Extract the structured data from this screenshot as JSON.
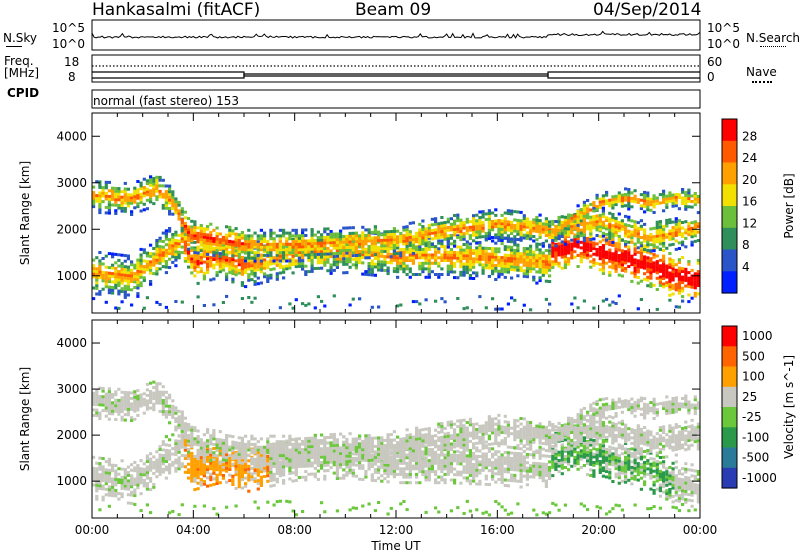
{
  "header": {
    "station": "Hankasalmi (fitACF)",
    "beam": "Beam 09",
    "date": "04/Sep/2014"
  },
  "noise_panel": {
    "left_label": "N.Sky",
    "right_label": "N.Search",
    "left_ticks": [
      "10^5",
      "10^0"
    ],
    "right_ticks": [
      "10^5",
      "10^0"
    ]
  },
  "freq_panel": {
    "left_label_1": "Freq.",
    "left_label_2": "[MHz]",
    "right_label": "Nave",
    "left_ticks": [
      "18",
      "8"
    ],
    "right_ticks": [
      "60",
      "0"
    ]
  },
  "cpid": {
    "label": "CPID",
    "text": "normal (fast stereo) 153"
  },
  "chart_data": [
    {
      "type": "heatmap",
      "title": "Power",
      "ylabel": "Slant Range [km]",
      "ylim": [
        200,
        4500
      ],
      "y_ticks": [
        "4000",
        "3000",
        "2000",
        "1000"
      ],
      "colorbar_label": "Power [dB]",
      "colorbar_ticks": [
        "28",
        "24",
        "20",
        "16",
        "12",
        "8",
        "4"
      ],
      "colors": [
        "#0020ff",
        "#2a55c8",
        "#2f8f5a",
        "#6bbf3a",
        "#f2e000",
        "#ffa000",
        "#ff5a00",
        "#ff0000"
      ],
      "bands": [
        {
          "name": "main",
          "points": [
            [
              0.0,
              1100
            ],
            [
              1.5,
              1000
            ],
            [
              2.5,
              1400
            ],
            [
              3.5,
              1800
            ],
            [
              4.0,
              1300
            ],
            [
              5.0,
              1450
            ],
            [
              6.0,
              1250
            ],
            [
              8.0,
              1500
            ],
            [
              10.0,
              1550
            ],
            [
              12.0,
              1450
            ],
            [
              14.0,
              1450
            ],
            [
              16.0,
              1400
            ],
            [
              18.0,
              1300
            ],
            [
              18.1,
              1600
            ],
            [
              19.0,
              1700
            ],
            [
              20.0,
              1550
            ],
            [
              21.0,
              1400
            ],
            [
              22.0,
              1250
            ],
            [
              23.0,
              1000
            ],
            [
              24.0,
              900
            ]
          ],
          "width": 450
        },
        {
          "name": "upper",
          "points": [
            [
              0.0,
              2750
            ],
            [
              1.5,
              2700
            ],
            [
              2.5,
              2900
            ],
            [
              3.2,
              2550
            ],
            [
              3.8,
              1900
            ],
            [
              5.0,
              1800
            ],
            [
              6.0,
              1700
            ],
            [
              8.0,
              1700
            ],
            [
              10.0,
              1750
            ],
            [
              12.0,
              1800
            ],
            [
              14.0,
              2000
            ],
            [
              16.0,
              2150
            ],
            [
              18.0,
              2000
            ],
            [
              19.0,
              2100
            ],
            [
              20.0,
              2200
            ],
            [
              21.0,
              2000
            ],
            [
              22.0,
              1850
            ],
            [
              23.0,
              1950
            ],
            [
              24.0,
              2100
            ]
          ],
          "width": 350
        },
        {
          "name": "late",
          "points": [
            [
              18.0,
              1900
            ],
            [
              19.0,
              2300
            ],
            [
              20.0,
              2600
            ],
            [
              21.0,
              2700
            ],
            [
              22.0,
              2600
            ],
            [
              23.0,
              2700
            ],
            [
              24.0,
              2650
            ]
          ],
          "width": 220
        }
      ]
    },
    {
      "type": "heatmap",
      "title": "Velocity",
      "xlabel": "Time UT",
      "ylabel": "Slant Range [km]",
      "ylim": [
        200,
        4500
      ],
      "xlim": [
        0,
        24
      ],
      "x_ticks": [
        "00:00",
        "04:00",
        "08:00",
        "12:00",
        "16:00",
        "20:00",
        "00:00"
      ],
      "y_ticks": [
        "4000",
        "3000",
        "2000",
        "1000"
      ],
      "colorbar_label": "Velocity [m s^-1]",
      "colorbar_ticks": [
        "1000",
        "500",
        "100",
        "25",
        "-25",
        "-100",
        "-500",
        "-1000"
      ],
      "colors": [
        "#2a3cb4",
        "#2a7a9a",
        "#2a9a4a",
        "#6ac83a",
        "#c8c8c0",
        "#ffa000",
        "#ff6400",
        "#ff0000"
      ]
    }
  ]
}
